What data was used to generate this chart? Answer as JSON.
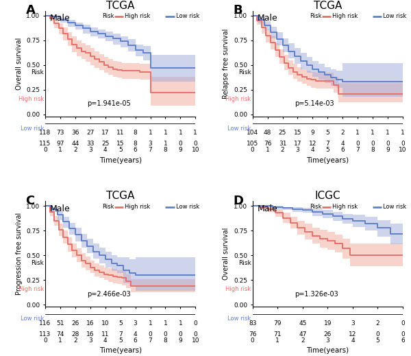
{
  "panels": [
    {
      "label": "A",
      "title": "TCGA",
      "subtitle": "Male",
      "ylabel": "Overall survival",
      "pvalue": "p=1.941e-05",
      "xlim": [
        0,
        10
      ],
      "ylim": [
        -0.02,
        1.05
      ],
      "xticks": [
        0,
        1,
        2,
        3,
        4,
        5,
        6,
        7,
        8,
        9,
        10
      ],
      "high_risk": {
        "times": [
          0,
          0.3,
          0.6,
          0.9,
          1.2,
          1.5,
          1.8,
          2.1,
          2.4,
          2.7,
          3.0,
          3.3,
          3.6,
          3.9,
          4.2,
          4.5,
          4.8,
          5.1,
          5.4,
          5.7,
          6.0,
          6.3,
          6.6,
          7.0,
          8.0,
          9.0,
          10.0
        ],
        "surv": [
          1.0,
          0.97,
          0.92,
          0.87,
          0.82,
          0.76,
          0.71,
          0.67,
          0.64,
          0.62,
          0.59,
          0.56,
          0.53,
          0.5,
          0.48,
          0.46,
          0.45,
          0.44,
          0.44,
          0.44,
          0.44,
          0.43,
          0.43,
          0.22,
          0.22,
          0.22,
          0.22
        ],
        "upper": [
          1.0,
          0.99,
          0.96,
          0.92,
          0.88,
          0.83,
          0.79,
          0.75,
          0.72,
          0.7,
          0.67,
          0.64,
          0.61,
          0.58,
          0.56,
          0.54,
          0.53,
          0.52,
          0.52,
          0.52,
          0.52,
          0.51,
          0.51,
          0.38,
          0.38,
          0.38,
          0.38
        ],
        "lower": [
          1.0,
          0.94,
          0.87,
          0.81,
          0.75,
          0.69,
          0.63,
          0.59,
          0.56,
          0.53,
          0.5,
          0.47,
          0.45,
          0.42,
          0.4,
          0.38,
          0.37,
          0.36,
          0.36,
          0.36,
          0.36,
          0.35,
          0.35,
          0.09,
          0.09,
          0.09,
          0.09
        ],
        "color": "#E8706A",
        "ci_color": "#F0A898"
      },
      "low_risk": {
        "times": [
          0,
          0.5,
          1.0,
          1.5,
          2.0,
          2.5,
          3.0,
          3.5,
          4.0,
          4.5,
          5.0,
          5.5,
          6.0,
          6.5,
          7.0,
          8.0,
          9.0,
          10.0
        ],
        "surv": [
          1.0,
          0.99,
          0.96,
          0.93,
          0.9,
          0.87,
          0.84,
          0.82,
          0.79,
          0.77,
          0.74,
          0.7,
          0.65,
          0.62,
          0.47,
          0.47,
          0.47,
          0.47
        ],
        "upper": [
          1.0,
          1.0,
          0.98,
          0.96,
          0.93,
          0.91,
          0.88,
          0.86,
          0.84,
          0.82,
          0.79,
          0.76,
          0.71,
          0.69,
          0.6,
          0.6,
          0.6,
          0.6
        ],
        "lower": [
          1.0,
          0.97,
          0.93,
          0.89,
          0.86,
          0.82,
          0.79,
          0.77,
          0.74,
          0.71,
          0.68,
          0.64,
          0.59,
          0.55,
          0.33,
          0.33,
          0.33,
          0.33
        ],
        "color": "#6080CC",
        "ci_color": "#A0AADC"
      },
      "table_high": [
        118,
        73,
        36,
        27,
        17,
        11,
        8,
        1,
        1,
        1,
        1
      ],
      "table_low": [
        115,
        97,
        44,
        33,
        25,
        15,
        8,
        3,
        1,
        0,
        0
      ]
    },
    {
      "label": "B",
      "title": "TCGA",
      "subtitle": "Male",
      "ylabel": "Relapse free survival",
      "pvalue": "p=5.14e-03",
      "xlim": [
        0,
        10
      ],
      "ylim": [
        -0.02,
        1.05
      ],
      "xticks": [
        0,
        1,
        2,
        3,
        4,
        5,
        6,
        7,
        8,
        9,
        10
      ],
      "high_risk": {
        "times": [
          0,
          0.3,
          0.6,
          0.9,
          1.2,
          1.5,
          1.8,
          2.1,
          2.4,
          2.7,
          3.0,
          3.3,
          3.6,
          3.9,
          4.2,
          4.5,
          4.8,
          5.1,
          5.4,
          5.7,
          6.0,
          7.0,
          8.0,
          9.0,
          10.0
        ],
        "surv": [
          1.0,
          0.95,
          0.88,
          0.8,
          0.73,
          0.65,
          0.58,
          0.52,
          0.47,
          0.43,
          0.4,
          0.38,
          0.36,
          0.35,
          0.34,
          0.34,
          0.34,
          0.34,
          0.3,
          0.21,
          0.21,
          0.21,
          0.21,
          0.21,
          0.21
        ],
        "upper": [
          1.0,
          0.98,
          0.93,
          0.86,
          0.8,
          0.72,
          0.66,
          0.6,
          0.55,
          0.51,
          0.48,
          0.46,
          0.44,
          0.43,
          0.42,
          0.42,
          0.42,
          0.42,
          0.38,
          0.32,
          0.32,
          0.32,
          0.32,
          0.32,
          0.4
        ],
        "lower": [
          1.0,
          0.91,
          0.82,
          0.73,
          0.66,
          0.58,
          0.51,
          0.45,
          0.4,
          0.36,
          0.33,
          0.31,
          0.29,
          0.27,
          0.26,
          0.26,
          0.26,
          0.26,
          0.22,
          0.12,
          0.12,
          0.12,
          0.12,
          0.12,
          0.05
        ],
        "color": "#E8706A",
        "ci_color": "#F0A898"
      },
      "low_risk": {
        "times": [
          0,
          0.4,
          0.8,
          1.2,
          1.6,
          2.0,
          2.4,
          2.8,
          3.2,
          3.6,
          4.0,
          4.4,
          4.8,
          5.2,
          5.6,
          6.0,
          7.0,
          8.0,
          9.0,
          10.0
        ],
        "surv": [
          1.0,
          0.96,
          0.9,
          0.83,
          0.76,
          0.7,
          0.64,
          0.59,
          0.54,
          0.5,
          0.46,
          0.43,
          0.4,
          0.37,
          0.35,
          0.33,
          0.33,
          0.33,
          0.33,
          0.33
        ],
        "upper": [
          1.0,
          0.99,
          0.94,
          0.89,
          0.83,
          0.77,
          0.72,
          0.67,
          0.62,
          0.58,
          0.54,
          0.51,
          0.48,
          0.46,
          0.44,
          0.52,
          0.52,
          0.52,
          0.52,
          0.52
        ],
        "lower": [
          1.0,
          0.92,
          0.85,
          0.77,
          0.7,
          0.63,
          0.57,
          0.51,
          0.46,
          0.42,
          0.38,
          0.35,
          0.32,
          0.29,
          0.27,
          0.18,
          0.18,
          0.18,
          0.18,
          0.18
        ],
        "color": "#6080CC",
        "ci_color": "#A0AADC"
      },
      "table_high": [
        104,
        48,
        25,
        15,
        9,
        5,
        2,
        1,
        1,
        1,
        1
      ],
      "table_low": [
        105,
        76,
        31,
        17,
        12,
        7,
        4,
        0,
        0,
        0,
        0
      ]
    },
    {
      "label": "C",
      "title": "TCGA",
      "subtitle": "Male",
      "ylabel": "Progression free survival",
      "pvalue": "p=2.466e-03",
      "xlim": [
        0,
        10
      ],
      "ylim": [
        -0.02,
        1.05
      ],
      "xticks": [
        0,
        1,
        2,
        3,
        4,
        5,
        6,
        7,
        8,
        9,
        10
      ],
      "high_risk": {
        "times": [
          0,
          0.3,
          0.6,
          0.9,
          1.2,
          1.5,
          1.8,
          2.1,
          2.4,
          2.7,
          3.0,
          3.3,
          3.6,
          3.9,
          4.2,
          4.5,
          4.8,
          5.1,
          5.4,
          5.7,
          6.0,
          7.0,
          8.0,
          9.0,
          10.0
        ],
        "surv": [
          1.0,
          0.94,
          0.85,
          0.76,
          0.68,
          0.61,
          0.55,
          0.5,
          0.45,
          0.42,
          0.38,
          0.35,
          0.33,
          0.31,
          0.3,
          0.29,
          0.28,
          0.27,
          0.24,
          0.19,
          0.19,
          0.19,
          0.19,
          0.19,
          0.19
        ],
        "upper": [
          1.0,
          0.97,
          0.9,
          0.82,
          0.75,
          0.68,
          0.62,
          0.57,
          0.52,
          0.49,
          0.45,
          0.42,
          0.4,
          0.38,
          0.37,
          0.36,
          0.35,
          0.34,
          0.31,
          0.26,
          0.26,
          0.26,
          0.26,
          0.26,
          0.36
        ],
        "lower": [
          1.0,
          0.9,
          0.8,
          0.7,
          0.62,
          0.54,
          0.48,
          0.43,
          0.38,
          0.35,
          0.32,
          0.29,
          0.27,
          0.25,
          0.23,
          0.22,
          0.21,
          0.2,
          0.17,
          0.13,
          0.13,
          0.13,
          0.13,
          0.13,
          0.08
        ],
        "color": "#E8706A",
        "ci_color": "#F0A898"
      },
      "low_risk": {
        "times": [
          0,
          0.4,
          0.8,
          1.2,
          1.6,
          2.0,
          2.4,
          2.8,
          3.2,
          3.6,
          4.0,
          4.4,
          4.8,
          5.2,
          5.6,
          6.0,
          7.0,
          8.0,
          9.0,
          10.0
        ],
        "surv": [
          1.0,
          0.97,
          0.91,
          0.84,
          0.77,
          0.71,
          0.65,
          0.59,
          0.54,
          0.5,
          0.46,
          0.42,
          0.4,
          0.35,
          0.32,
          0.3,
          0.3,
          0.3,
          0.3,
          0.3
        ],
        "upper": [
          1.0,
          0.99,
          0.95,
          0.89,
          0.83,
          0.78,
          0.72,
          0.67,
          0.62,
          0.58,
          0.54,
          0.5,
          0.48,
          0.48,
          0.46,
          0.48,
          0.48,
          0.48,
          0.48,
          0.48
        ],
        "lower": [
          1.0,
          0.94,
          0.86,
          0.78,
          0.71,
          0.64,
          0.58,
          0.52,
          0.47,
          0.42,
          0.38,
          0.34,
          0.32,
          0.22,
          0.19,
          0.14,
          0.14,
          0.14,
          0.14,
          0.14
        ],
        "color": "#6080CC",
        "ci_color": "#A0AADC"
      },
      "table_high": [
        116,
        51,
        26,
        16,
        10,
        5,
        3,
        1,
        1,
        1,
        0
      ],
      "table_low": [
        113,
        74,
        28,
        16,
        11,
        7,
        4,
        0,
        0,
        0,
        0
      ]
    },
    {
      "label": "D",
      "title": "ICGC",
      "subtitle": "Male",
      "ylabel": "Overall survival",
      "pvalue": "p=1.326e-03",
      "xlim": [
        0,
        6
      ],
      "ylim": [
        -0.02,
        1.05
      ],
      "xticks": [
        0,
        1,
        2,
        3,
        4,
        5,
        6
      ],
      "high_risk": {
        "times": [
          0,
          0.3,
          0.6,
          0.9,
          1.2,
          1.5,
          1.8,
          2.1,
          2.4,
          2.7,
          3.0,
          3.3,
          3.6,
          3.9,
          4.0,
          5.0,
          6.0
        ],
        "surv": [
          1.0,
          0.99,
          0.97,
          0.93,
          0.88,
          0.83,
          0.78,
          0.74,
          0.7,
          0.67,
          0.65,
          0.62,
          0.57,
          0.5,
          0.5,
          0.5,
          0.5
        ],
        "upper": [
          1.0,
          1.0,
          0.99,
          0.97,
          0.93,
          0.89,
          0.85,
          0.82,
          0.78,
          0.76,
          0.74,
          0.71,
          0.67,
          0.62,
          0.62,
          0.62,
          0.62
        ],
        "lower": [
          1.0,
          0.97,
          0.94,
          0.89,
          0.83,
          0.77,
          0.71,
          0.66,
          0.62,
          0.58,
          0.56,
          0.53,
          0.47,
          0.39,
          0.39,
          0.39,
          0.39
        ],
        "color": "#E8706A",
        "ci_color": "#F0A898"
      },
      "low_risk": {
        "times": [
          0,
          0.4,
          0.8,
          1.2,
          1.6,
          2.0,
          2.4,
          2.8,
          3.2,
          3.6,
          4.0,
          4.5,
          5.0,
          5.5,
          6.0
        ],
        "surv": [
          1.0,
          1.0,
          0.99,
          0.98,
          0.97,
          0.96,
          0.94,
          0.92,
          0.9,
          0.87,
          0.85,
          0.82,
          0.78,
          0.72,
          0.72
        ],
        "upper": [
          1.0,
          1.0,
          1.0,
          0.99,
          0.99,
          0.98,
          0.97,
          0.96,
          0.94,
          0.92,
          0.91,
          0.89,
          0.86,
          0.82,
          0.82
        ],
        "lower": [
          1.0,
          0.99,
          0.97,
          0.96,
          0.94,
          0.93,
          0.9,
          0.88,
          0.85,
          0.82,
          0.79,
          0.75,
          0.69,
          0.61,
          0.61
        ],
        "color": "#6080CC",
        "ci_color": "#A0AADC"
      },
      "table_high": [
        83,
        79,
        45,
        19,
        3,
        2,
        0
      ],
      "table_low": [
        76,
        71,
        47,
        26,
        12,
        0,
        0
      ]
    }
  ],
  "high_color": "#E8706A",
  "low_color": "#6080CC"
}
